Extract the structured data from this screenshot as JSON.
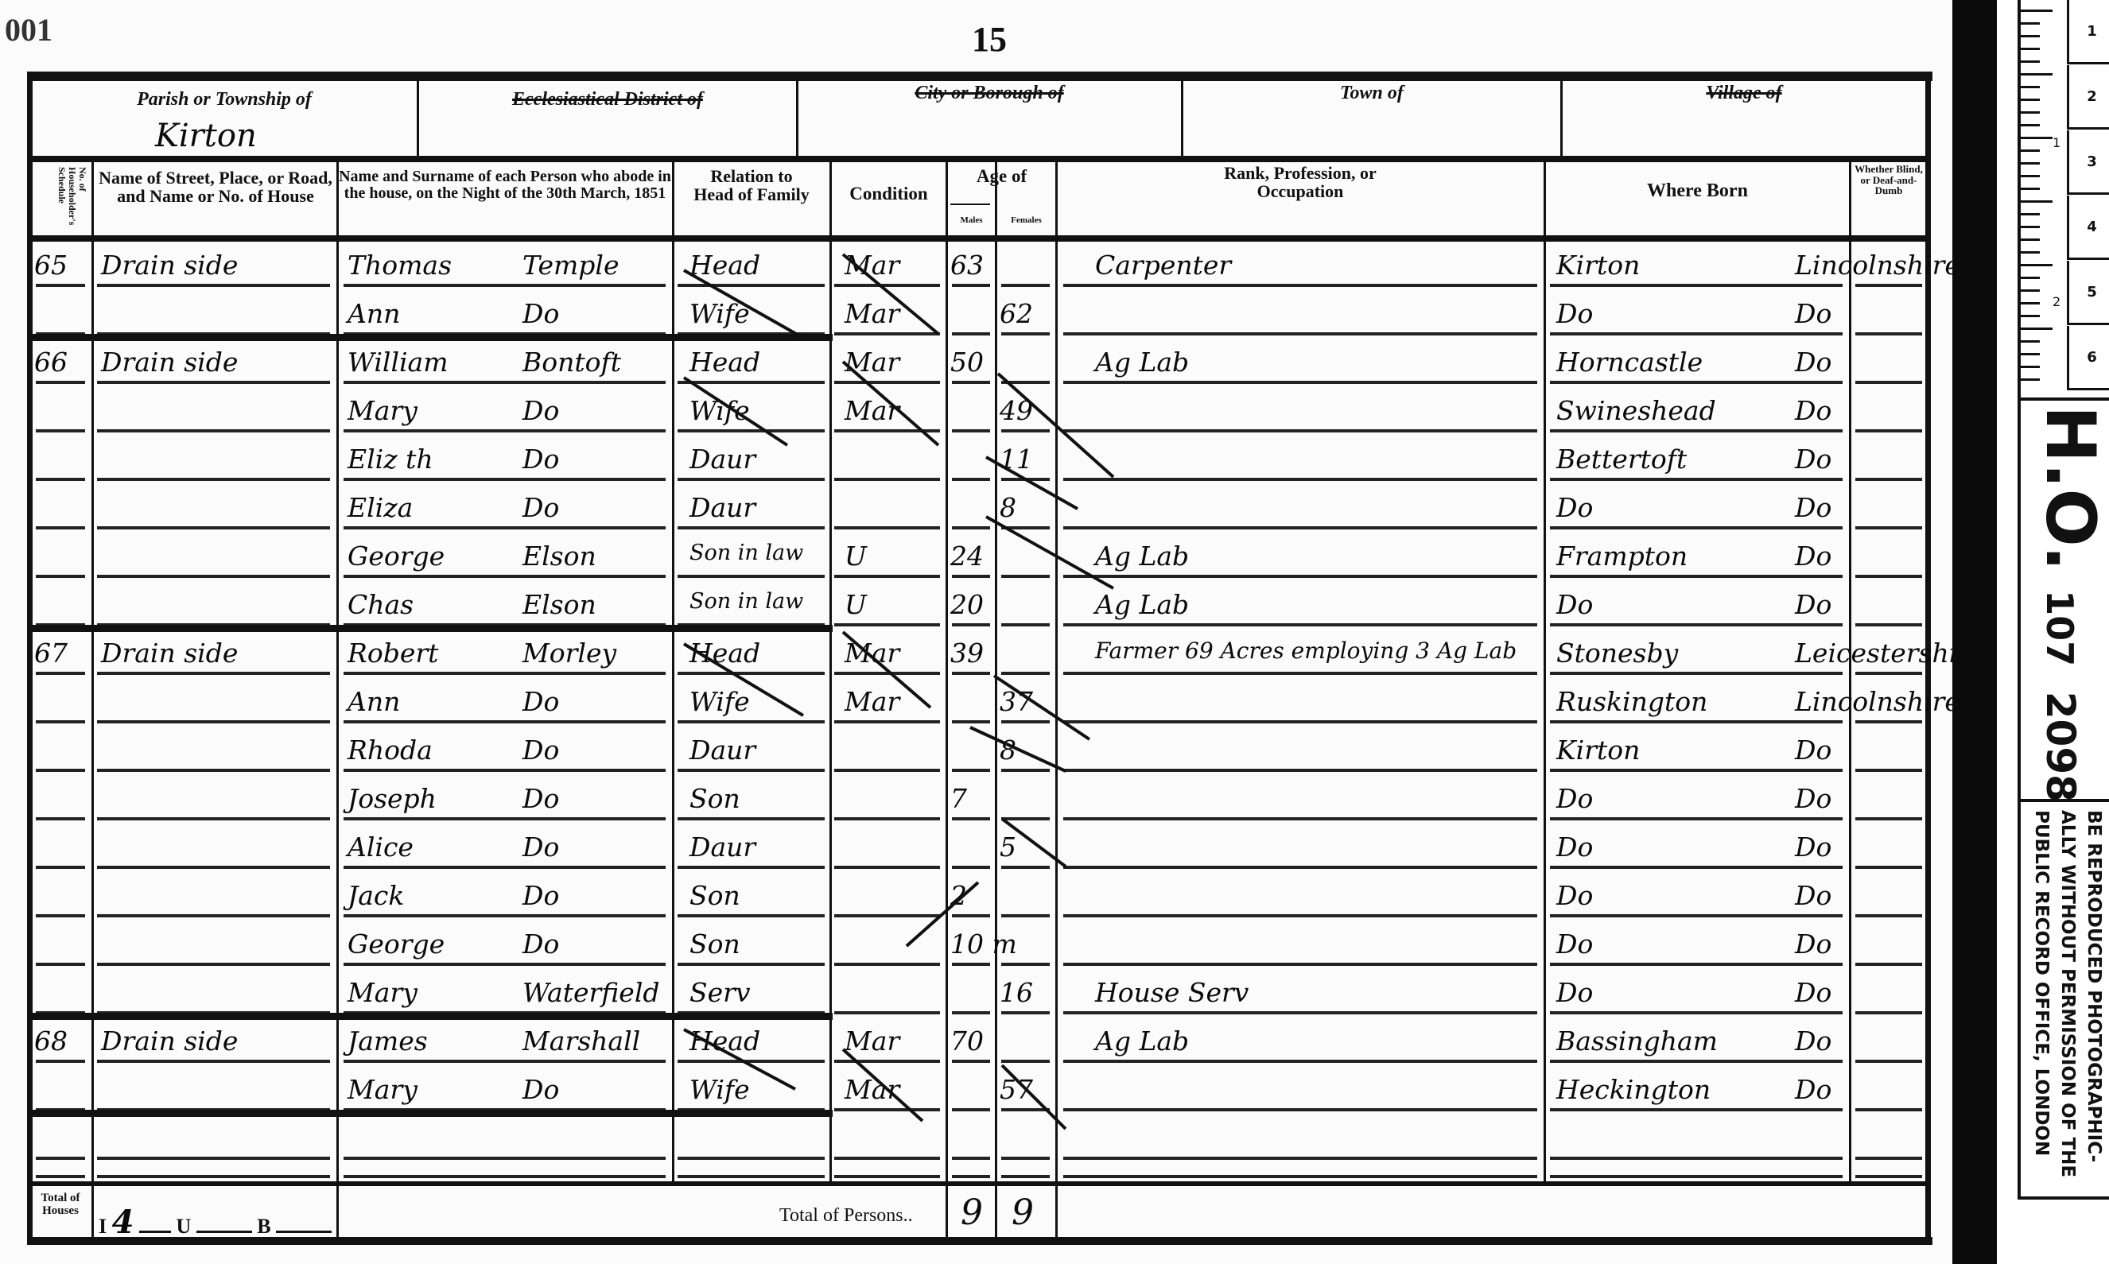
{
  "page": {
    "folio_top_left": "001",
    "page_number": "15"
  },
  "header_top": {
    "parish_label": "Parish or Township of",
    "parish_value": "Kirton",
    "ecclesiastical_label": "Ecclesiastical District of",
    "city_label": "City or Borough of",
    "town_label": "Town of",
    "village_label": "Village of"
  },
  "columns": {
    "schedule": "No. of Householder's Schedule",
    "street": "Name of Street, Place, or Road, and Name or No. of House",
    "name": "Name and Surname of each Person who abode in the house, on the Night of the 30th March, 1851",
    "relation": "Relation to Head of Family",
    "condition": "Condition",
    "age": "Age of",
    "males": "Males",
    "females": "Females",
    "occupation": "Rank, Profession, or Occupation",
    "where_born": "Where Born",
    "blind": "Whether Blind, or Deaf-and-Dumb"
  },
  "rows": [
    {
      "schedule": "65",
      "street": "Drain side",
      "first": "Thomas",
      "surname": "Temple",
      "relation": "Head",
      "condition": "Mar",
      "male": "63",
      "female": "",
      "occupation": "Carpenter",
      "born_place": "Kirton",
      "born_county": "Lincolnshire"
    },
    {
      "schedule": "",
      "street": "",
      "first": "Ann",
      "surname": "Do",
      "relation": "Wife",
      "condition": "Mar",
      "male": "",
      "female": "62",
      "occupation": "",
      "born_place": "Do",
      "born_county": "Do"
    },
    {
      "schedule": "66",
      "street": "Drain side",
      "first": "William",
      "surname": "Bontoft",
      "relation": "Head",
      "condition": "Mar",
      "male": "50",
      "female": "",
      "occupation": "Ag Lab",
      "born_place": "Horncastle",
      "born_county": "Do"
    },
    {
      "schedule": "",
      "street": "",
      "first": "Mary",
      "surname": "Do",
      "relation": "Wife",
      "condition": "Mar",
      "male": "",
      "female": "49",
      "occupation": "",
      "born_place": "Swineshead",
      "born_county": "Do"
    },
    {
      "schedule": "",
      "street": "",
      "first": "Eliz th",
      "surname": "Do",
      "relation": "Daur",
      "condition": "",
      "male": "",
      "female": "11",
      "occupation": "",
      "born_place": "Bettertoft",
      "born_county": "Do"
    },
    {
      "schedule": "",
      "street": "",
      "first": "Eliza",
      "surname": "Do",
      "relation": "Daur",
      "condition": "",
      "male": "",
      "female": "8",
      "occupation": "",
      "born_place": "Do",
      "born_county": "Do"
    },
    {
      "schedule": "",
      "street": "",
      "first": "George",
      "surname": "Elson",
      "relation": "Son in law",
      "condition": "U",
      "male": "24",
      "female": "",
      "occupation": "Ag Lab",
      "born_place": "Frampton",
      "born_county": "Do"
    },
    {
      "schedule": "",
      "street": "",
      "first": "Chas",
      "surname": "Elson",
      "relation": "Son in law",
      "condition": "U",
      "male": "20",
      "female": "",
      "occupation": "Ag Lab",
      "born_place": "Do",
      "born_county": "Do"
    },
    {
      "schedule": "67",
      "street": "Drain side",
      "first": "Robert",
      "surname": "Morley",
      "relation": "Head",
      "condition": "Mar",
      "male": "39",
      "female": "",
      "occupation": "Farmer 69 Acres employing 3 Ag Lab",
      "born_place": "Stonesby",
      "born_county": "Leicestershire"
    },
    {
      "schedule": "",
      "street": "",
      "first": "Ann",
      "surname": "Do",
      "relation": "Wife",
      "condition": "Mar",
      "male": "",
      "female": "37",
      "occupation": "",
      "born_place": "Ruskington",
      "born_county": "Lincolnshire"
    },
    {
      "schedule": "",
      "street": "",
      "first": "Rhoda",
      "surname": "Do",
      "relation": "Daur",
      "condition": "",
      "male": "",
      "female": "8",
      "occupation": "",
      "born_place": "Kirton",
      "born_county": "Do"
    },
    {
      "schedule": "",
      "street": "",
      "first": "Joseph",
      "surname": "Do",
      "relation": "Son",
      "condition": "",
      "male": "7",
      "female": "",
      "occupation": "",
      "born_place": "Do",
      "born_county": "Do"
    },
    {
      "schedule": "",
      "street": "",
      "first": "Alice",
      "surname": "Do",
      "relation": "Daur",
      "condition": "",
      "male": "",
      "female": "5",
      "occupation": "",
      "born_place": "Do",
      "born_county": "Do"
    },
    {
      "schedule": "",
      "street": "",
      "first": "Jack",
      "surname": "Do",
      "relation": "Son",
      "condition": "",
      "male": "2",
      "female": "",
      "occupation": "",
      "born_place": "Do",
      "born_county": "Do"
    },
    {
      "schedule": "",
      "street": "",
      "first": "George",
      "surname": "Do",
      "relation": "Son",
      "condition": "",
      "male": "10 m",
      "female": "",
      "occupation": "",
      "born_place": "Do",
      "born_county": "Do"
    },
    {
      "schedule": "",
      "street": "",
      "first": "Mary",
      "surname": "Waterfield",
      "relation": "Serv",
      "condition": "",
      "male": "",
      "female": "16",
      "occupation": "House Serv",
      "born_place": "Do",
      "born_county": "Do"
    },
    {
      "schedule": "68",
      "street": "Drain side",
      "first": "James",
      "surname": "Marshall",
      "relation": "Head",
      "condition": "Mar",
      "male": "70",
      "female": "",
      "occupation": "Ag Lab",
      "born_place": "Bassingham",
      "born_county": "Do"
    },
    {
      "schedule": "",
      "street": "",
      "first": "Mary",
      "surname": "Do",
      "relation": "Wife",
      "condition": "Mar",
      "male": "",
      "female": "57",
      "occupation": "",
      "born_place": "Heckington",
      "born_county": "Do"
    }
  ],
  "footer": {
    "houses_label": "Total of Houses",
    "inhabited_label": "I",
    "inhabited_value": "4",
    "uninhabited_label": "U",
    "building_label": "B",
    "persons_label": "Total of Persons..",
    "males_total": "9",
    "females_total": "9"
  },
  "archive_strip": {
    "cm_marks": [
      "1",
      "2",
      "3",
      "4",
      "5",
      "6"
    ],
    "inch_marks": [
      "1",
      "2"
    ],
    "reference_series": "H.O.",
    "reference_piece": "107",
    "reference_number": "2098",
    "copyright_lines": [
      "BE REPRODUCED PHOTOGRAPHIC-",
      "ALLY WITHOUT PERMISSION OF THE",
      "PUBLIC RECORD OFFICE, LONDON"
    ]
  }
}
